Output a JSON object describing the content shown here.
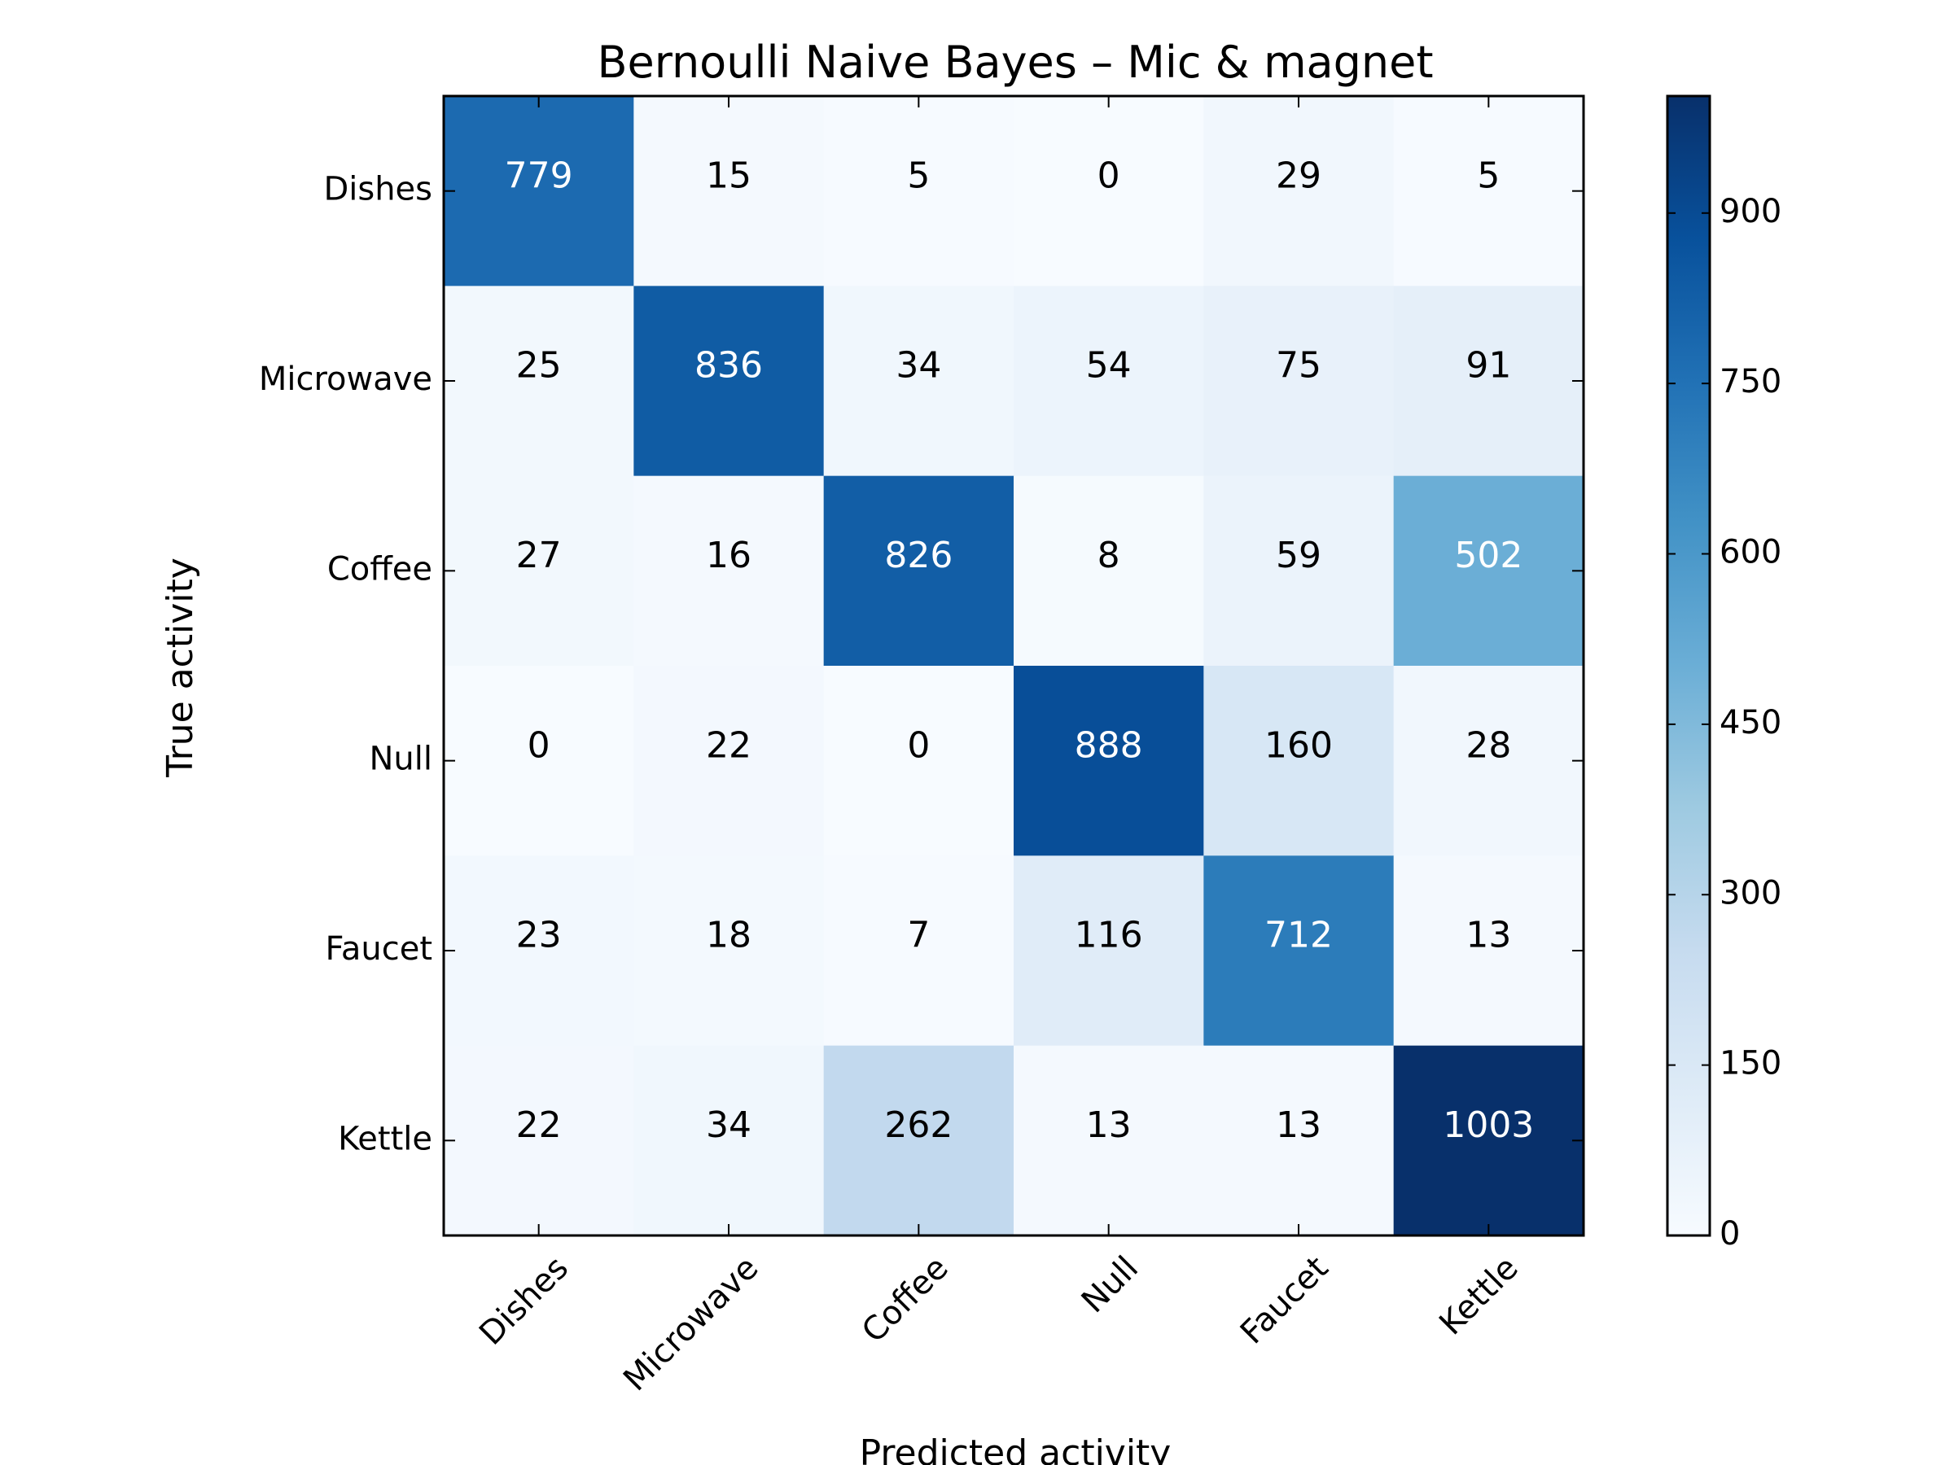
{
  "chart_data": {
    "type": "heatmap",
    "title": "Bernoulli Naive Bayes – Mic & magnet",
    "xlabel": "Predicted activity",
    "ylabel": "True activity",
    "x_categories": [
      "Dishes",
      "Microwave",
      "Coffee",
      "Null",
      "Faucet",
      "Kettle"
    ],
    "y_categories": [
      "Dishes",
      "Microwave",
      "Coffee",
      "Null",
      "Faucet",
      "Kettle"
    ],
    "values": [
      [
        779,
        15,
        5,
        0,
        29,
        5
      ],
      [
        25,
        836,
        34,
        54,
        75,
        91
      ],
      [
        27,
        16,
        826,
        8,
        59,
        502
      ],
      [
        0,
        22,
        0,
        888,
        160,
        28
      ],
      [
        23,
        18,
        7,
        116,
        712,
        13
      ],
      [
        22,
        34,
        262,
        13,
        13,
        1003
      ]
    ],
    "colorbar": {
      "min": 0,
      "max": 1003,
      "ticks": [
        0,
        150,
        300,
        450,
        600,
        750,
        900
      ],
      "colormap": "Blues",
      "low_color": "#f7fbff",
      "high_color": "#08306b"
    },
    "grid": false
  }
}
